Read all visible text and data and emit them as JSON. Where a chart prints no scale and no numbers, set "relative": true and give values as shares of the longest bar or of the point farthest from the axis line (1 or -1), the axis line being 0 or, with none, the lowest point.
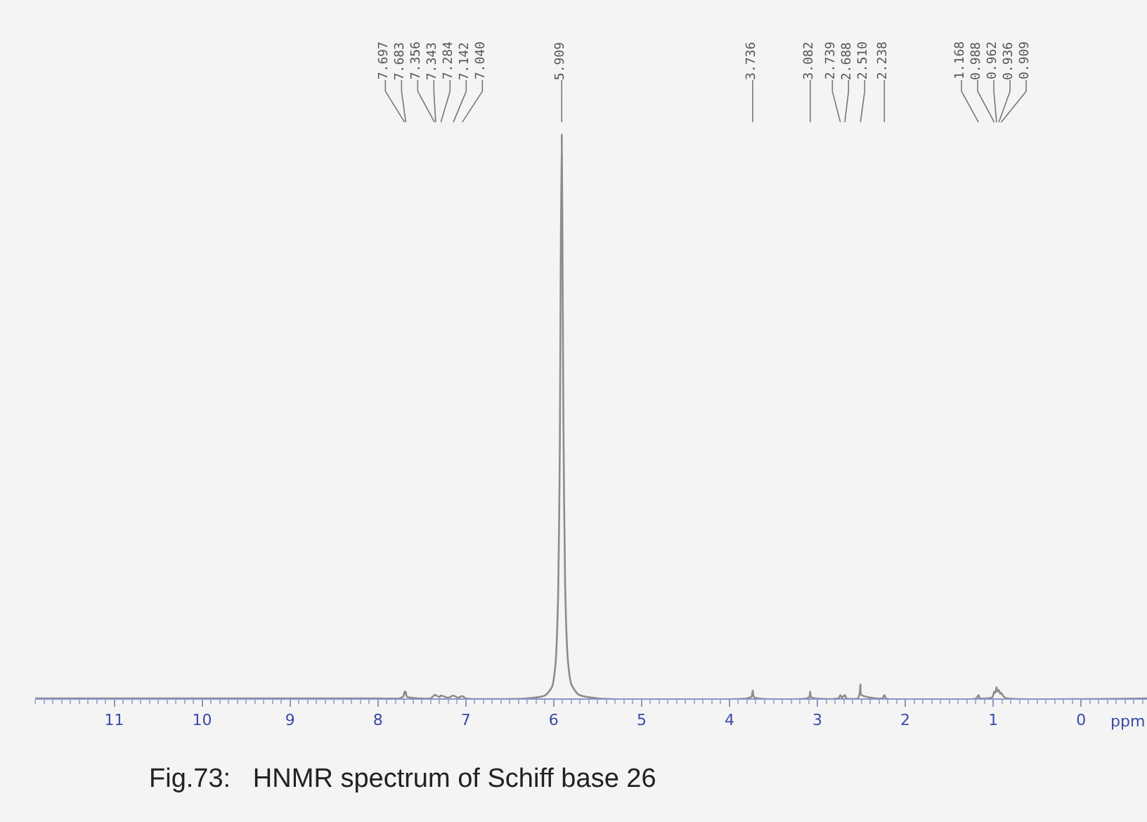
{
  "chart_data": {
    "type": "line",
    "relative": true,
    "xlabel": "ppm",
    "x": [
      11.9,
      8.0,
      7.75,
      7.71,
      7.697,
      7.69,
      7.683,
      7.67,
      7.4,
      7.356,
      7.343,
      7.3,
      7.284,
      7.2,
      7.142,
      7.09,
      7.04,
      7.0,
      6.3,
      6.1,
      6.02,
      5.98,
      5.95,
      5.93,
      5.92,
      5.909,
      5.9,
      5.89,
      5.87,
      5.84,
      5.8,
      5.72,
      5.5,
      3.8,
      3.75,
      3.736,
      3.72,
      3.12,
      3.09,
      3.082,
      3.07,
      2.76,
      2.739,
      2.72,
      2.688,
      2.67,
      2.54,
      2.52,
      2.51,
      2.5,
      2.26,
      2.238,
      2.22,
      1.19,
      1.168,
      1.15,
      1.01,
      0.988,
      0.975,
      0.962,
      0.95,
      0.936,
      0.92,
      0.909,
      0.88,
      0.84,
      -0.75
    ],
    "values": [
      0,
      0,
      0,
      0.004,
      0.012,
      0.008,
      0.012,
      0.003,
      0,
      0.006,
      0.006,
      0.002,
      0.005,
      0.001,
      0.005,
      0.001,
      0.004,
      0,
      0,
      0.005,
      0.02,
      0.06,
      0.18,
      0.45,
      0.78,
      1,
      0.8,
      0.5,
      0.2,
      0.07,
      0.025,
      0.007,
      0,
      0,
      0.003,
      0.014,
      0.002,
      0,
      0.003,
      0.012,
      0.002,
      0,
      0.006,
      0.001,
      0.006,
      0,
      0,
      0.008,
      0.025,
      0.006,
      0,
      0.006,
      0,
      0,
      0.006,
      0,
      0.002,
      0.012,
      0.01,
      0.02,
      0.012,
      0.015,
      0.008,
      0.01,
      0.003,
      0,
      0
    ],
    "color": "#8c8c8c",
    "xlim": [
      11.9,
      -0.75
    ],
    "xticks": [
      11,
      10,
      9,
      8,
      7,
      6,
      5,
      4,
      3,
      2,
      1,
      0
    ],
    "annotations": [
      {
        "text": "7.697",
        "x": 7.697
      },
      {
        "text": "7.683",
        "x": 7.683
      },
      {
        "text": "7.356",
        "x": 7.356
      },
      {
        "text": "7.343",
        "x": 7.343
      },
      {
        "text": "7.284",
        "x": 7.284
      },
      {
        "text": "7.142",
        "x": 7.142
      },
      {
        "text": "7.040",
        "x": 7.04
      },
      {
        "text": "5.909",
        "x": 5.909
      },
      {
        "text": "3.736",
        "x": 3.736
      },
      {
        "text": "3.082",
        "x": 3.082
      },
      {
        "text": "2.739",
        "x": 2.739
      },
      {
        "text": "2.688",
        "x": 2.688
      },
      {
        "text": "2.510",
        "x": 2.51
      },
      {
        "text": "2.238",
        "x": 2.238
      },
      {
        "text": "1.168",
        "x": 1.168
      },
      {
        "text": "0.988",
        "x": 0.988
      },
      {
        "text": "0.962",
        "x": 0.962
      },
      {
        "text": "0.936",
        "x": 0.936
      },
      {
        "text": "0.909",
        "x": 0.909
      },
      "Fig.73:   HNMR spectrum of Schiff base 26"
    ]
  }
}
